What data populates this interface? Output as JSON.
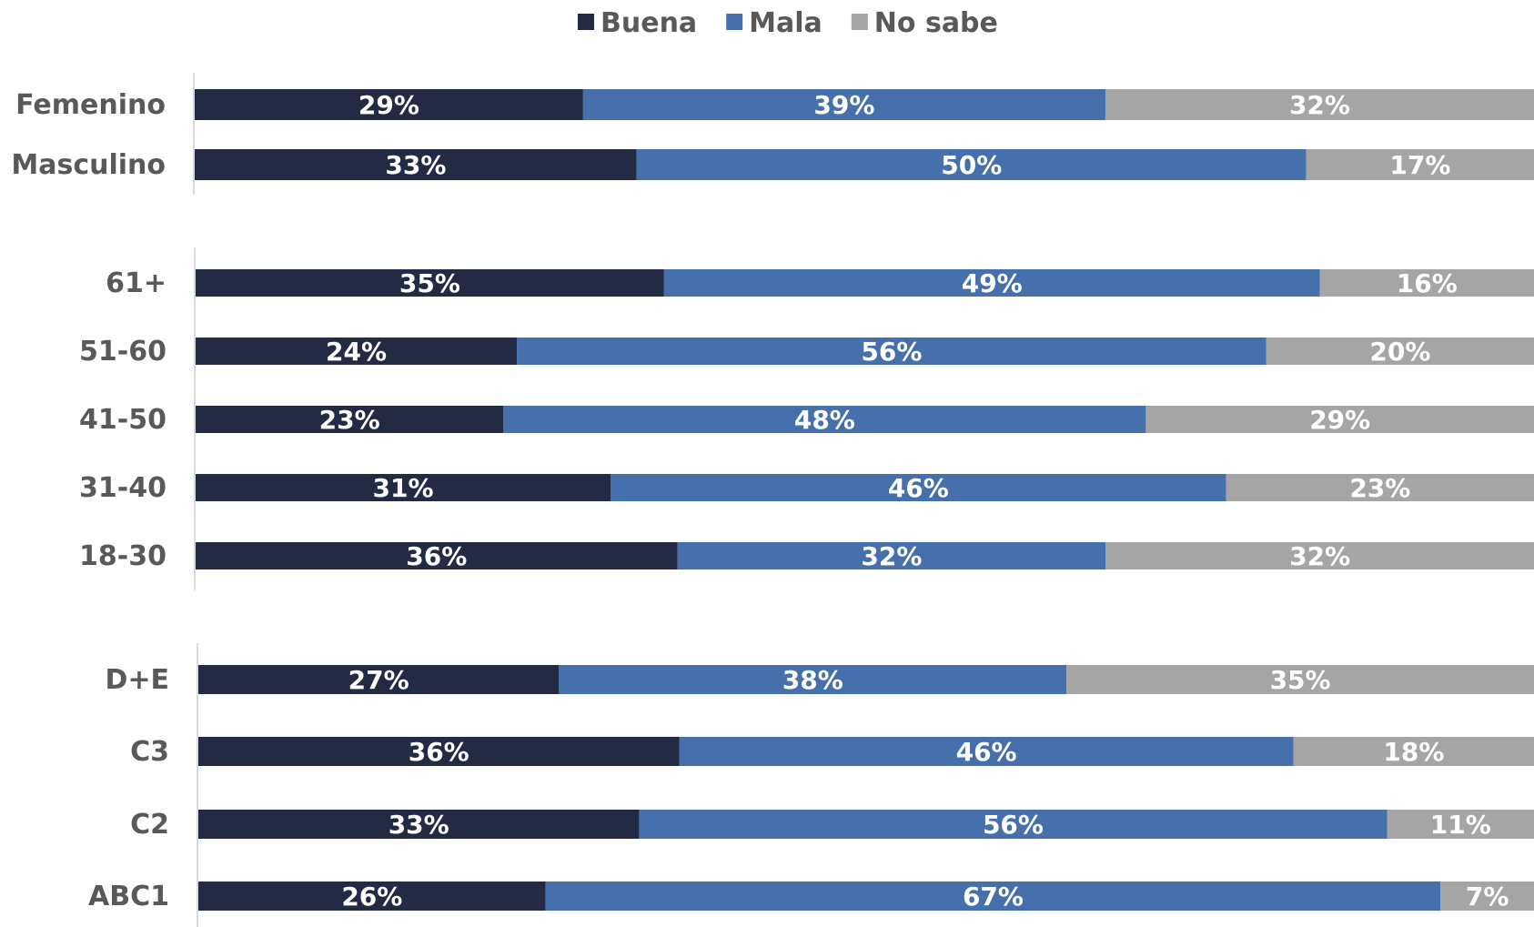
{
  "chart_data": {
    "type": "bar",
    "orientation": "horizontal",
    "stacked": "100%",
    "legend_position": "top",
    "grid": false,
    "xlim": [
      0,
      100
    ],
    "series": [
      {
        "name": "Buena",
        "color": "#232a44"
      },
      {
        "name": "Mala",
        "color": "#4670ab"
      },
      {
        "name": "No sabe",
        "color": "#a5a5a5"
      }
    ],
    "groups": [
      {
        "categories": [
          "Femenino",
          "Masculino"
        ],
        "values": [
          [
            29,
            39,
            32
          ],
          [
            33,
            50,
            17
          ]
        ],
        "labels": [
          [
            "29%",
            "39%",
            "32%"
          ],
          [
            "33%",
            "50%",
            "17%"
          ]
        ]
      },
      {
        "categories": [
          "61+",
          "51-60",
          "41-50",
          "31-40",
          "18-30"
        ],
        "values": [
          [
            35,
            49,
            16
          ],
          [
            24,
            56,
            20
          ],
          [
            23,
            48,
            29
          ],
          [
            31,
            46,
            23
          ],
          [
            36,
            32,
            32
          ]
        ],
        "labels": [
          [
            "35%",
            "49%",
            "16%"
          ],
          [
            "24%",
            "56%",
            "20%"
          ],
          [
            "23%",
            "48%",
            "29%"
          ],
          [
            "31%",
            "46%",
            "23%"
          ],
          [
            "36%",
            "32%",
            "32%"
          ]
        ]
      },
      {
        "categories": [
          "D+E",
          "C3",
          "C2",
          "ABC1"
        ],
        "values": [
          [
            27,
            38,
            35
          ],
          [
            36,
            46,
            18
          ],
          [
            33,
            56,
            11
          ],
          [
            26,
            67,
            7
          ]
        ],
        "labels": [
          [
            "27%",
            "38%",
            "35%"
          ],
          [
            "36%",
            "46%",
            "18%"
          ],
          [
            "33%",
            "56%",
            "11%"
          ],
          [
            "26%",
            "67%",
            "7%"
          ]
        ]
      }
    ]
  }
}
